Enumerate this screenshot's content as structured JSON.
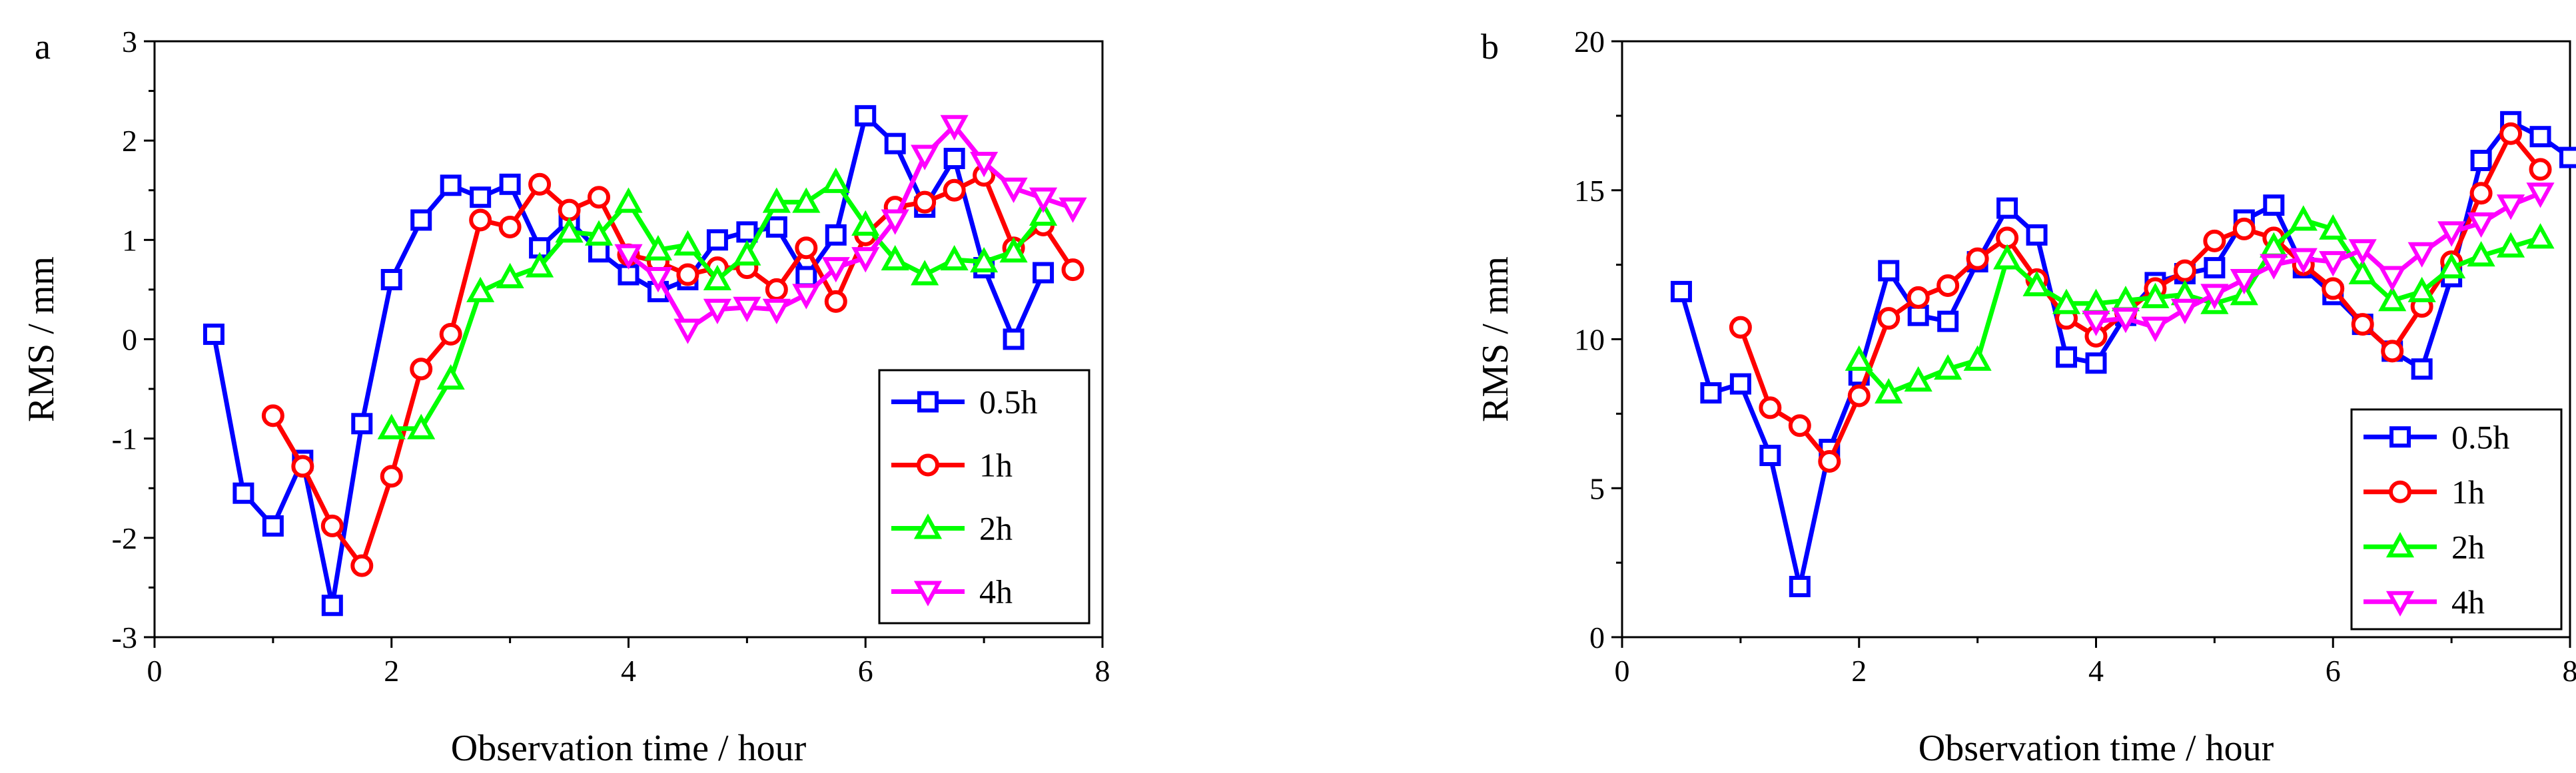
{
  "chart_data": [
    {
      "panel": "a",
      "type": "line",
      "xlabel": "Observation time / hour",
      "ylabel": "RMS / mm",
      "xlim": [
        0,
        8
      ],
      "ylim": [
        -3,
        3
      ],
      "xticks": [
        "0",
        "2",
        "4",
        "6",
        "8"
      ],
      "yticks": [
        "-3",
        "-2",
        "-1",
        "0",
        "1",
        "2",
        "3"
      ],
      "legend_position": "bottom-right",
      "series": [
        {
          "name": "0.5h",
          "color": "#0000ff",
          "marker": "square",
          "x": [
            0.5,
            0.75,
            1,
            1.25,
            1.5,
            1.75,
            2,
            2.25,
            2.5,
            2.75,
            3,
            3.25,
            3.5,
            3.75,
            4,
            4.25,
            4.5,
            4.75,
            5,
            5.25,
            5.5,
            5.75,
            6,
            6.25,
            6.5,
            6.75,
            7,
            7.25,
            7.5
          ],
          "y": [
            0.05,
            -1.55,
            -1.88,
            -1.22,
            -2.68,
            -0.85,
            0.6,
            1.2,
            1.55,
            1.43,
            1.56,
            0.92,
            1.2,
            0.88,
            0.65,
            0.48,
            0.6,
            1.0,
            1.08,
            1.13,
            0.63,
            1.05,
            2.25,
            1.97,
            1.33,
            1.82,
            0.72,
            0.0,
            0.67
          ]
        },
        {
          "name": "1h",
          "color": "#ff0000",
          "marker": "circle",
          "x": [
            1,
            1.25,
            1.5,
            1.75,
            2,
            2.25,
            2.5,
            2.75,
            3,
            3.25,
            3.5,
            3.75,
            4,
            4.25,
            4.5,
            4.75,
            5,
            5.25,
            5.5,
            5.75,
            6,
            6.25,
            6.5,
            6.75,
            7,
            7.25,
            7.5,
            7.75
          ],
          "y": [
            -0.77,
            -1.28,
            -1.88,
            -2.28,
            -1.38,
            -0.3,
            0.05,
            1.2,
            1.13,
            1.56,
            1.3,
            1.43,
            0.85,
            0.78,
            0.65,
            0.72,
            0.72,
            0.5,
            0.92,
            0.38,
            1.05,
            1.33,
            1.38,
            1.5,
            1.65,
            0.92,
            1.15,
            0.7
          ]
        },
        {
          "name": "2h",
          "color": "#00ff00",
          "marker": "triangle-up",
          "x": [
            2,
            2.25,
            2.5,
            2.75,
            3,
            3.25,
            3.5,
            3.75,
            4,
            4.25,
            4.5,
            4.75,
            5,
            5.25,
            5.5,
            5.75,
            6,
            6.25,
            6.5,
            6.75,
            7,
            7.25,
            7.5
          ],
          "y": [
            -0.9,
            -0.9,
            -0.4,
            0.48,
            0.62,
            0.73,
            1.08,
            1.05,
            1.38,
            0.9,
            0.95,
            0.6,
            0.85,
            1.38,
            1.38,
            1.58,
            1.15,
            0.8,
            0.65,
            0.8,
            0.78,
            0.88,
            1.25
          ]
        },
        {
          "name": "4h",
          "color": "#ff00ff",
          "marker": "triangle-down",
          "x": [
            4,
            4.25,
            4.5,
            4.75,
            5,
            5.25,
            5.5,
            5.75,
            6,
            6.25,
            6.5,
            6.75,
            7,
            7.25,
            7.5,
            7.75
          ],
          "y": [
            0.85,
            0.62,
            0.1,
            0.3,
            0.32,
            0.3,
            0.45,
            0.72,
            0.82,
            1.2,
            1.85,
            2.15,
            1.78,
            1.52,
            1.42,
            1.32
          ]
        }
      ]
    },
    {
      "panel": "b",
      "type": "line",
      "xlabel": "Observation time / hour",
      "ylabel": "RMS / mm",
      "xlim": [
        0,
        8
      ],
      "ylim": [
        0,
        20
      ],
      "xticks": [
        "0",
        "2",
        "4",
        "6",
        "8"
      ],
      "yticks": [
        "0",
        "5",
        "10",
        "15",
        "20"
      ],
      "legend_position": "bottom-right",
      "series": [
        {
          "name": "0.5h",
          "color": "#0000ff",
          "marker": "square",
          "x": [
            0.5,
            0.75,
            1,
            1.25,
            1.5,
            1.75,
            2,
            2.25,
            2.5,
            2.75,
            3,
            3.25,
            3.5,
            3.75,
            4,
            4.25,
            4.5,
            4.75,
            5,
            5.25,
            5.5,
            5.75,
            6,
            6.25,
            6.5,
            6.75,
            7,
            7.25,
            7.5,
            7.75,
            8
          ],
          "y": [
            11.6,
            8.2,
            8.5,
            6.1,
            1.7,
            6.3,
            8.8,
            12.3,
            10.8,
            10.6,
            12.6,
            14.4,
            13.5,
            9.4,
            9.2,
            10.8,
            11.9,
            12.2,
            12.4,
            14.0,
            14.5,
            12.4,
            11.5,
            10.5,
            9.6,
            9.0,
            12.1,
            16.0,
            17.3,
            16.8,
            16.1
          ]
        },
        {
          "name": "1h",
          "color": "#ff0000",
          "marker": "circle",
          "x": [
            1,
            1.25,
            1.5,
            1.75,
            2,
            2.25,
            2.5,
            2.75,
            3,
            3.25,
            3.5,
            3.75,
            4,
            4.25,
            4.5,
            4.75,
            5,
            5.25,
            5.5,
            5.75,
            6,
            6.25,
            6.5,
            6.75,
            7,
            7.25,
            7.5,
            7.75
          ],
          "y": [
            10.4,
            7.7,
            7.1,
            5.9,
            8.1,
            10.7,
            11.4,
            11.8,
            12.7,
            13.4,
            12.0,
            10.7,
            10.1,
            10.9,
            11.7,
            12.3,
            13.3,
            13.7,
            13.4,
            12.5,
            11.7,
            10.5,
            9.6,
            11.1,
            12.6,
            14.9,
            16.9,
            15.7
          ]
        },
        {
          "name": "2h",
          "color": "#00ff00",
          "marker": "triangle-up",
          "x": [
            2,
            2.25,
            2.5,
            2.75,
            3,
            3.25,
            3.5,
            3.75,
            4,
            4.25,
            4.5,
            4.75,
            5,
            5.25,
            5.5,
            5.75,
            6,
            6.25,
            6.5,
            6.75,
            7,
            7.25,
            7.5,
            7.75
          ],
          "y": [
            9.3,
            8.2,
            8.6,
            9.0,
            9.3,
            12.7,
            11.8,
            11.2,
            11.2,
            11.3,
            11.4,
            11.5,
            11.2,
            11.5,
            13.1,
            14.0,
            13.7,
            12.2,
            11.3,
            11.6,
            12.4,
            12.8,
            13.1,
            13.4
          ]
        },
        {
          "name": "4h",
          "color": "#ff00ff",
          "marker": "triangle-down",
          "x": [
            4,
            4.25,
            4.5,
            4.75,
            5,
            5.25,
            5.5,
            5.75,
            6,
            6.25,
            6.5,
            6.75,
            7,
            7.25,
            7.5,
            7.75
          ],
          "y": [
            10.6,
            10.7,
            10.4,
            11.0,
            11.5,
            12.0,
            12.5,
            12.7,
            12.6,
            13.0,
            12.1,
            12.9,
            13.6,
            13.9,
            14.5,
            14.9
          ]
        }
      ]
    }
  ]
}
